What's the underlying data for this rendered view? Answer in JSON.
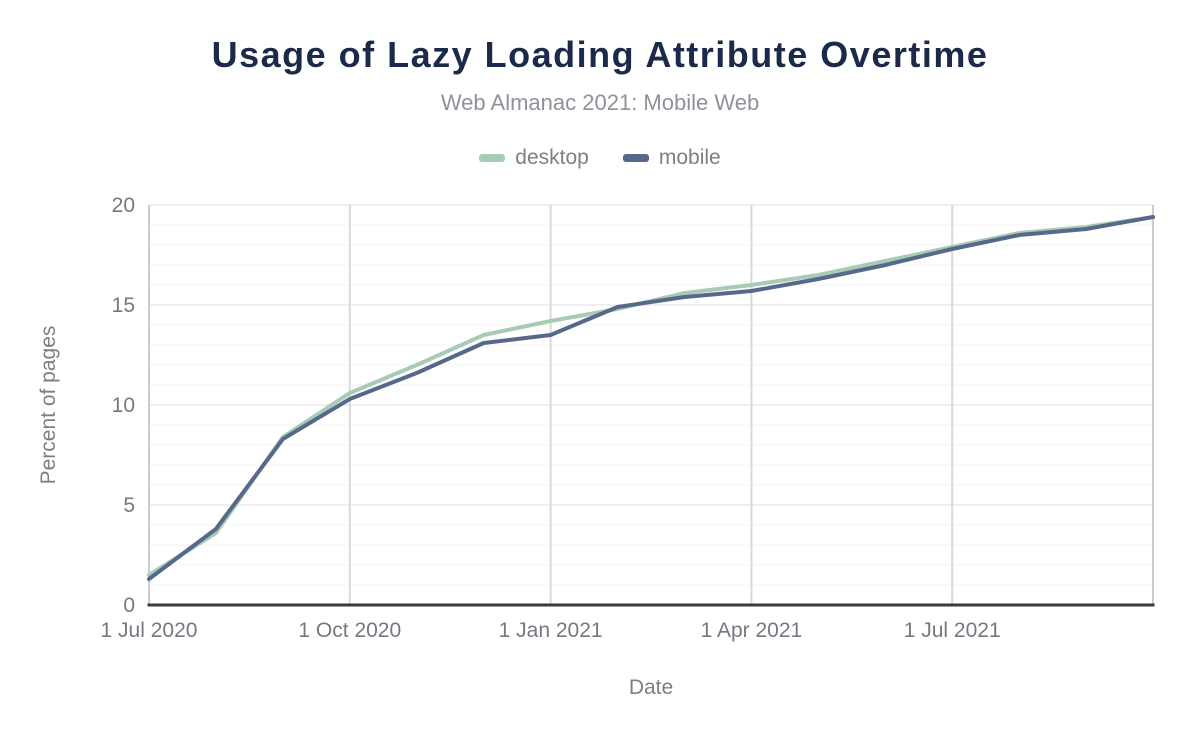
{
  "header": {
    "title": "Usage of Lazy Loading Attribute Overtime",
    "subtitle": "Web Almanac 2021: Mobile Web"
  },
  "axes": {
    "y_title": "Percent of pages",
    "x_title": "Date",
    "y_ticks": [
      0,
      5,
      10,
      15,
      20
    ],
    "x_ticks": [
      {
        "label": "1 Jul 2020",
        "month_index": 0
      },
      {
        "label": "1 Oct 2020",
        "month_index": 3
      },
      {
        "label": "1 Jan 2021",
        "month_index": 6
      },
      {
        "label": "1 Apr 2021",
        "month_index": 9
      },
      {
        "label": "1 Jul 2021",
        "month_index": 12
      }
    ]
  },
  "colors": {
    "title": "#1b2a4a",
    "subtitle": "#8e9299",
    "tick_label": "#75797f",
    "axis_baseline": "#3b3b3b",
    "vertical_grid": "#d9d9d9",
    "major_grid": "#eaeaea",
    "minor_grid": "#f5f5f5",
    "edge_line": "#cccccc"
  },
  "chart_data": {
    "type": "line",
    "title": "Usage of Lazy Loading Attribute Overtime",
    "subtitle": "Web Almanac 2021: Mobile Web",
    "xlabel": "Date",
    "ylabel": "Percent of pages",
    "ylim": [
      0,
      20
    ],
    "grid": true,
    "legend_position": "top",
    "x": [
      "1 Jul 2020",
      "1 Aug 2020",
      "1 Sep 2020",
      "1 Oct 2020",
      "1 Nov 2020",
      "1 Dec 2020",
      "1 Jan 2021",
      "1 Feb 2021",
      "1 Mar 2021",
      "1 Apr 2021",
      "1 May 2021",
      "1 Jun 2021",
      "1 Jul 2021",
      "1 Aug 2021",
      "1 Sep 2021",
      "1 Oct 2021"
    ],
    "x_tick_labels": [
      "1 Jul 2020",
      "1 Oct 2020",
      "1 Jan 2021",
      "1 Apr 2021",
      "1 Jul 2021"
    ],
    "series": [
      {
        "name": "desktop",
        "color": "#a8cbb5",
        "values": [
          1.5,
          3.6,
          8.4,
          10.6,
          12.0,
          13.5,
          14.2,
          14.8,
          15.6,
          16.0,
          16.5,
          17.2,
          17.9,
          18.6,
          18.9,
          19.4
        ]
      },
      {
        "name": "mobile",
        "color": "#56688b",
        "values": [
          1.3,
          3.8,
          8.3,
          10.3,
          11.6,
          13.1,
          13.5,
          14.9,
          15.4,
          15.7,
          16.3,
          17.0,
          17.8,
          18.5,
          18.8,
          19.4
        ]
      }
    ]
  }
}
